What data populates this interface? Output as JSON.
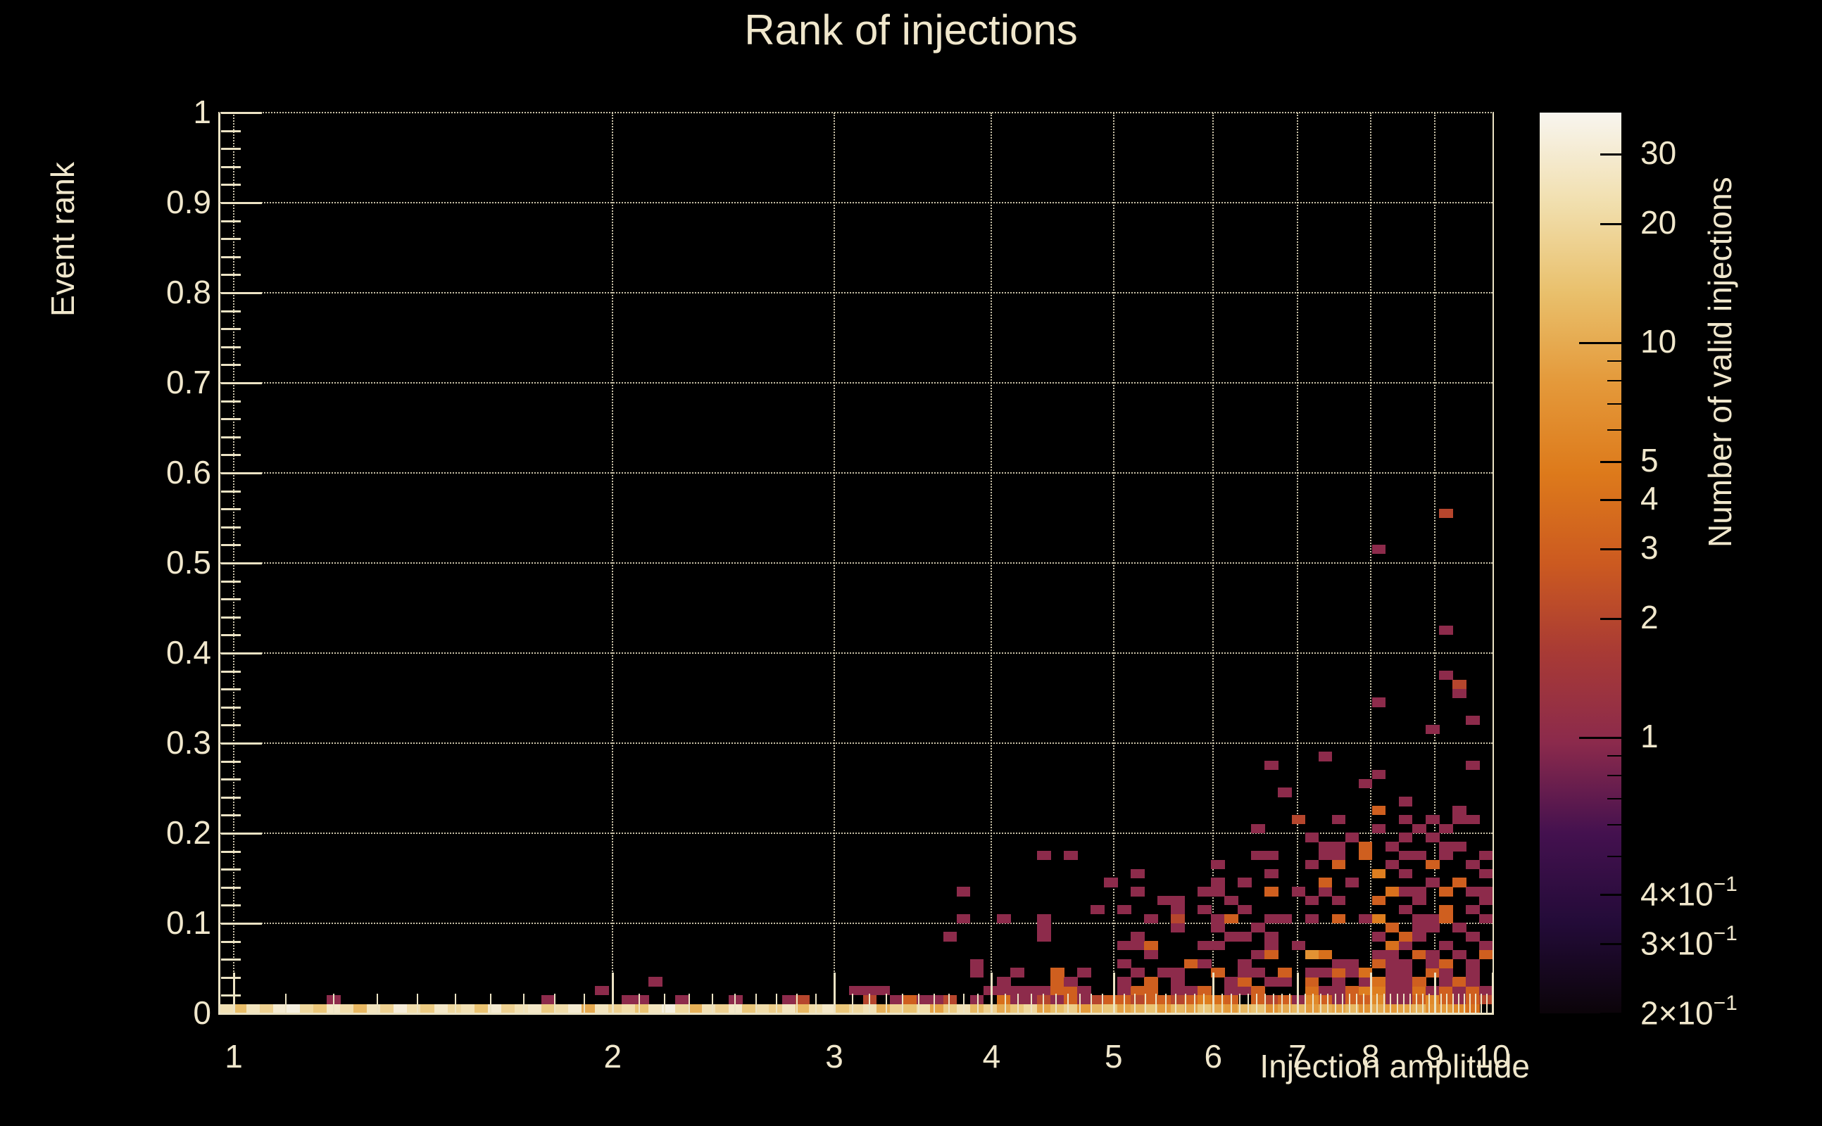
{
  "title": "Rank of injections",
  "colors": {
    "background": "#000000",
    "text": "#f0e7cc",
    "axis": "#ece3c4",
    "grid": "#ece3c4"
  },
  "chart_data": {
    "type": "heatmap",
    "title": "Rank of injections",
    "xlabel": "Injection amplitude",
    "ylabel": "Event rank",
    "zlabel": "Number of valid injections",
    "x_scale": "log",
    "x_range": [
      1,
      10
    ],
    "y_range": [
      0,
      1
    ],
    "z_scale": "log",
    "z_range": [
      0.2,
      38.3
    ],
    "grid": true,
    "legend_position": "right-colorbar",
    "x_bins": 95,
    "y_bins": 100,
    "x_ticks": [
      {
        "v": 1,
        "label": "1"
      },
      {
        "v": 2,
        "label": "2"
      },
      {
        "v": 3,
        "label": "3"
      },
      {
        "v": 4,
        "label": "4"
      },
      {
        "v": 5,
        "label": "5"
      },
      {
        "v": 6,
        "label": "6"
      },
      {
        "v": 7,
        "label": "7"
      },
      {
        "v": 8,
        "label": "8"
      },
      {
        "v": 9,
        "label": "9"
      },
      {
        "v": 10,
        "label": "10"
      }
    ],
    "y_ticks": [
      {
        "v": 0.0,
        "label": "0"
      },
      {
        "v": 0.1,
        "label": "0.1"
      },
      {
        "v": 0.2,
        "label": "0.2"
      },
      {
        "v": 0.3,
        "label": "0.3"
      },
      {
        "v": 0.4,
        "label": "0.4"
      },
      {
        "v": 0.5,
        "label": "0.5"
      },
      {
        "v": 0.6,
        "label": "0.6"
      },
      {
        "v": 0.7,
        "label": "0.7"
      },
      {
        "v": 0.8,
        "label": "0.8"
      },
      {
        "v": 0.9,
        "label": "0.9"
      },
      {
        "v": 1.0,
        "label": "1"
      }
    ],
    "z_ticks": [
      {
        "v": 30,
        "label": "30",
        "len": "med"
      },
      {
        "v": 20,
        "label": "20",
        "len": "med"
      },
      {
        "v": 10,
        "label": "10",
        "len": "long"
      },
      {
        "v": 5,
        "label": "5",
        "len": "med"
      },
      {
        "v": 4,
        "label": "4",
        "len": "med"
      },
      {
        "v": 3,
        "label": "3",
        "len": "med"
      },
      {
        "v": 2,
        "label": "2",
        "len": "med"
      },
      {
        "v": 1,
        "label": "1",
        "len": "long"
      },
      {
        "v": 0.4,
        "label": "4×10",
        "exp": "−1",
        "len": "med"
      },
      {
        "v": 0.3,
        "label": "3×10",
        "exp": "−1",
        "len": "med"
      },
      {
        "v": 0.2,
        "label": "2×10",
        "exp": "−1",
        "len": "med"
      }
    ],
    "z_minor_ticks": [
      9,
      8,
      7,
      6,
      0.9,
      0.8,
      0.7,
      0.6,
      0.5
    ],
    "palette": [
      [
        0.0,
        "#0b0409"
      ],
      [
        0.1,
        "#230b38"
      ],
      [
        0.2,
        "#44114f"
      ],
      [
        0.3,
        "#8b2a4c"
      ],
      [
        0.4,
        "#a83a35"
      ],
      [
        0.5,
        "#cc5a20"
      ],
      [
        0.6,
        "#dd7a1b"
      ],
      [
        0.7,
        "#e4993a"
      ],
      [
        0.8,
        "#e9c06c"
      ],
      [
        0.9,
        "#f1dfae"
      ],
      [
        1.0,
        "#f8f5ef"
      ]
    ],
    "bottom_row": [
      24,
      13,
      26,
      18,
      30,
      34,
      20,
      15,
      28,
      22,
      12,
      26,
      18,
      32,
      22,
      16,
      28,
      20,
      24,
      14,
      30,
      18,
      24,
      28,
      16,
      22,
      30,
      10,
      26,
      18,
      22,
      14,
      26,
      34,
      20,
      11,
      24,
      18,
      28,
      15,
      22,
      17,
      26,
      12,
      22,
      28,
      15,
      20,
      24,
      11,
      18,
      14,
      22,
      9,
      16,
      24,
      12,
      18,
      10,
      15,
      20,
      9,
      13,
      17,
      8,
      12,
      15,
      9,
      11,
      14,
      8,
      12,
      9,
      15,
      10,
      8,
      12,
      14,
      7,
      10,
      12,
      8,
      11,
      9,
      12,
      7,
      10,
      8,
      9,
      11,
      7,
      8,
      6,
      4,
      0
    ],
    "cells": [
      [
        7,
        1,
        1
      ],
      [
        23,
        1,
        1
      ],
      [
        29,
        1,
        1
      ],
      [
        30,
        1,
        1
      ],
      [
        33,
        1,
        1
      ],
      [
        37,
        1,
        1
      ],
      [
        41,
        1,
        1
      ],
      [
        42,
        1,
        2
      ],
      [
        47,
        1,
        2
      ],
      [
        49,
        1,
        1
      ],
      [
        50,
        1,
        3
      ],
      [
        51,
        1,
        1
      ],
      [
        52,
        1,
        1
      ],
      [
        53,
        1,
        2
      ],
      [
        55,
        1,
        1
      ],
      [
        57,
        1,
        4
      ],
      [
        58,
        1,
        1
      ],
      [
        59,
        1,
        1
      ],
      [
        60,
        1,
        2
      ],
      [
        61,
        1,
        1
      ],
      [
        62,
        1,
        3
      ],
      [
        63,
        1,
        1
      ],
      [
        64,
        1,
        2
      ],
      [
        65,
        1,
        3
      ],
      [
        66,
        1,
        3
      ],
      [
        67,
        1,
        2
      ],
      [
        68,
        1,
        3
      ],
      [
        69,
        1,
        3
      ],
      [
        70,
        1,
        2
      ],
      [
        71,
        1,
        3
      ],
      [
        72,
        1,
        5
      ],
      [
        73,
        1,
        4
      ],
      [
        74,
        1,
        3
      ],
      [
        76,
        1,
        3
      ],
      [
        77,
        1,
        2
      ],
      [
        78,
        1,
        3
      ],
      [
        79,
        1,
        1
      ],
      [
        80,
        1,
        6
      ],
      [
        81,
        1,
        3
      ],
      [
        82,
        1,
        1
      ],
      [
        83,
        1,
        3
      ],
      [
        84,
        1,
        3
      ],
      [
        85,
        1,
        6
      ],
      [
        86,
        1,
        1
      ],
      [
        87,
        1,
        1
      ],
      [
        88,
        1,
        3
      ],
      [
        89,
        1,
        6
      ],
      [
        90,
        1,
        3
      ],
      [
        91,
        1,
        1
      ],
      [
        92,
        1,
        3
      ],
      [
        93,
        1,
        2
      ],
      [
        27,
        2,
        1
      ],
      [
        46,
        2,
        1
      ],
      [
        47,
        2,
        1
      ],
      [
        48,
        2,
        1
      ],
      [
        56,
        2,
        1
      ],
      [
        57,
        2,
        1
      ],
      [
        58,
        2,
        1
      ],
      [
        59,
        2,
        1
      ],
      [
        60,
        2,
        1
      ],
      [
        61,
        2,
        3
      ],
      [
        62,
        2,
        3
      ],
      [
        63,
        2,
        1
      ],
      [
        66,
        2,
        1
      ],
      [
        67,
        2,
        3
      ],
      [
        68,
        2,
        3
      ],
      [
        70,
        2,
        1
      ],
      [
        71,
        2,
        1
      ],
      [
        72,
        2,
        3
      ],
      [
        74,
        2,
        1
      ],
      [
        75,
        2,
        1
      ],
      [
        76,
        2,
        3
      ],
      [
        80,
        2,
        4
      ],
      [
        81,
        2,
        1
      ],
      [
        82,
        2,
        1
      ],
      [
        83,
        2,
        3
      ],
      [
        84,
        2,
        5
      ],
      [
        85,
        2,
        5
      ],
      [
        86,
        2,
        1
      ],
      [
        87,
        2,
        1
      ],
      [
        88,
        2,
        4
      ],
      [
        89,
        2,
        1
      ],
      [
        90,
        2,
        3
      ],
      [
        91,
        2,
        1
      ],
      [
        92,
        2,
        3
      ],
      [
        93,
        2,
        1
      ],
      [
        31,
        3,
        1
      ],
      [
        57,
        3,
        1
      ],
      [
        61,
        3,
        3
      ],
      [
        62,
        3,
        1
      ],
      [
        66,
        3,
        1
      ],
      [
        68,
        3,
        3
      ],
      [
        70,
        3,
        1
      ],
      [
        74,
        3,
        1
      ],
      [
        75,
        3,
        3
      ],
      [
        77,
        3,
        1
      ],
      [
        78,
        3,
        1
      ],
      [
        80,
        3,
        3
      ],
      [
        82,
        3,
        1
      ],
      [
        84,
        3,
        1
      ],
      [
        85,
        3,
        4
      ],
      [
        86,
        3,
        1
      ],
      [
        87,
        3,
        1
      ],
      [
        88,
        3,
        3
      ],
      [
        90,
        3,
        1
      ],
      [
        91,
        3,
        3
      ],
      [
        92,
        3,
        1
      ],
      [
        55,
        4,
        1
      ],
      [
        58,
        4,
        1
      ],
      [
        61,
        4,
        3
      ],
      [
        63,
        4,
        1
      ],
      [
        67,
        4,
        1
      ],
      [
        69,
        4,
        1
      ],
      [
        70,
        4,
        1
      ],
      [
        73,
        4,
        3
      ],
      [
        75,
        4,
        1
      ],
      [
        76,
        4,
        1
      ],
      [
        78,
        4,
        3
      ],
      [
        80,
        4,
        1
      ],
      [
        81,
        4,
        1
      ],
      [
        82,
        4,
        3
      ],
      [
        83,
        4,
        1
      ],
      [
        84,
        4,
        4
      ],
      [
        86,
        4,
        1
      ],
      [
        87,
        4,
        1
      ],
      [
        89,
        4,
        3
      ],
      [
        90,
        4,
        1
      ],
      [
        92,
        4,
        1
      ],
      [
        55,
        5,
        1
      ],
      [
        66,
        5,
        1
      ],
      [
        71,
        5,
        3
      ],
      [
        72,
        5,
        1
      ],
      [
        75,
        5,
        1
      ],
      [
        82,
        5,
        1
      ],
      [
        83,
        5,
        1
      ],
      [
        85,
        5,
        3
      ],
      [
        86,
        5,
        1
      ],
      [
        87,
        5,
        1
      ],
      [
        89,
        5,
        1
      ],
      [
        90,
        5,
        3
      ],
      [
        92,
        5,
        1
      ],
      [
        68,
        6,
        1
      ],
      [
        76,
        6,
        1
      ],
      [
        77,
        6,
        3
      ],
      [
        80,
        6,
        7
      ],
      [
        81,
        6,
        4
      ],
      [
        85,
        6,
        1
      ],
      [
        86,
        6,
        1
      ],
      [
        88,
        6,
        3
      ],
      [
        89,
        6,
        1
      ],
      [
        91,
        6,
        1
      ],
      [
        93,
        6,
        3
      ],
      [
        66,
        7,
        1
      ],
      [
        67,
        7,
        1
      ],
      [
        68,
        7,
        3
      ],
      [
        72,
        7,
        1
      ],
      [
        73,
        7,
        1
      ],
      [
        77,
        7,
        1
      ],
      [
        79,
        7,
        1
      ],
      [
        86,
        7,
        4
      ],
      [
        87,
        7,
        1
      ],
      [
        90,
        7,
        1
      ],
      [
        93,
        7,
        1
      ],
      [
        53,
        8,
        1
      ],
      [
        60,
        8,
        1
      ],
      [
        67,
        8,
        1
      ],
      [
        74,
        8,
        1
      ],
      [
        75,
        8,
        1
      ],
      [
        77,
        8,
        1
      ],
      [
        85,
        8,
        1
      ],
      [
        87,
        8,
        3
      ],
      [
        88,
        8,
        1
      ],
      [
        92,
        8,
        1
      ],
      [
        60,
        9,
        1
      ],
      [
        70,
        9,
        1
      ],
      [
        73,
        9,
        1
      ],
      [
        76,
        9,
        1
      ],
      [
        86,
        9,
        3
      ],
      [
        88,
        9,
        1
      ],
      [
        89,
        9,
        1
      ],
      [
        91,
        9,
        1
      ],
      [
        54,
        10,
        1
      ],
      [
        57,
        10,
        1
      ],
      [
        60,
        10,
        1
      ],
      [
        68,
        10,
        1
      ],
      [
        70,
        10,
        2
      ],
      [
        73,
        10,
        1
      ],
      [
        74,
        10,
        3
      ],
      [
        77,
        10,
        1
      ],
      [
        78,
        10,
        1
      ],
      [
        80,
        10,
        1
      ],
      [
        82,
        10,
        3
      ],
      [
        84,
        10,
        1
      ],
      [
        85,
        10,
        5
      ],
      [
        88,
        10,
        1
      ],
      [
        89,
        10,
        1
      ],
      [
        90,
        10,
        3
      ],
      [
        93,
        10,
        1
      ],
      [
        64,
        11,
        1
      ],
      [
        66,
        11,
        1
      ],
      [
        70,
        11,
        1
      ],
      [
        72,
        11,
        1
      ],
      [
        75,
        11,
        1
      ],
      [
        87,
        11,
        1
      ],
      [
        90,
        11,
        3
      ],
      [
        92,
        11,
        1
      ],
      [
        69,
        12,
        1
      ],
      [
        70,
        12,
        1
      ],
      [
        74,
        12,
        1
      ],
      [
        80,
        12,
        1
      ],
      [
        82,
        12,
        1
      ],
      [
        85,
        12,
        3
      ],
      [
        88,
        12,
        1
      ],
      [
        93,
        12,
        1
      ],
      [
        54,
        13,
        1
      ],
      [
        67,
        13,
        1
      ],
      [
        72,
        13,
        1
      ],
      [
        73,
        13,
        1
      ],
      [
        77,
        13,
        3
      ],
      [
        79,
        13,
        1
      ],
      [
        81,
        13,
        1
      ],
      [
        86,
        13,
        4
      ],
      [
        87,
        13,
        1
      ],
      [
        88,
        13,
        1
      ],
      [
        90,
        13,
        3
      ],
      [
        92,
        13,
        1
      ],
      [
        93,
        13,
        1
      ],
      [
        65,
        14,
        1
      ],
      [
        73,
        14,
        1
      ],
      [
        75,
        14,
        1
      ],
      [
        81,
        14,
        3
      ],
      [
        83,
        14,
        1
      ],
      [
        89,
        14,
        1
      ],
      [
        91,
        14,
        3
      ],
      [
        67,
        15,
        1
      ],
      [
        77,
        15,
        1
      ],
      [
        85,
        15,
        5
      ],
      [
        87,
        15,
        1
      ],
      [
        93,
        15,
        1
      ],
      [
        73,
        16,
        1
      ],
      [
        80,
        16,
        1
      ],
      [
        82,
        16,
        3
      ],
      [
        86,
        16,
        1
      ],
      [
        89,
        16,
        3
      ],
      [
        92,
        16,
        1
      ],
      [
        60,
        17,
        1
      ],
      [
        62,
        17,
        1
      ],
      [
        76,
        17,
        1
      ],
      [
        77,
        17,
        1
      ],
      [
        81,
        17,
        1
      ],
      [
        82,
        17,
        1
      ],
      [
        84,
        17,
        3
      ],
      [
        87,
        17,
        1
      ],
      [
        88,
        17,
        1
      ],
      [
        90,
        17,
        1
      ],
      [
        93,
        17,
        1
      ],
      [
        81,
        18,
        1
      ],
      [
        82,
        18,
        1
      ],
      [
        84,
        18,
        3
      ],
      [
        86,
        18,
        1
      ],
      [
        90,
        18,
        1
      ],
      [
        91,
        18,
        1
      ],
      [
        80,
        19,
        1
      ],
      [
        83,
        19,
        1
      ],
      [
        87,
        19,
        1
      ],
      [
        89,
        19,
        1
      ],
      [
        76,
        20,
        1
      ],
      [
        85,
        20,
        1
      ],
      [
        88,
        20,
        1
      ],
      [
        90,
        20,
        1
      ],
      [
        79,
        21,
        2
      ],
      [
        82,
        21,
        1
      ],
      [
        87,
        21,
        1
      ],
      [
        89,
        21,
        1
      ],
      [
        91,
        21,
        1
      ],
      [
        92,
        21,
        1
      ],
      [
        85,
        22,
        3
      ],
      [
        91,
        22,
        1
      ],
      [
        87,
        23,
        1
      ],
      [
        78,
        24,
        1
      ],
      [
        84,
        25,
        1
      ],
      [
        85,
        26,
        1
      ],
      [
        77,
        27,
        1
      ],
      [
        92,
        27,
        1
      ],
      [
        81,
        28,
        1
      ],
      [
        89,
        31,
        1
      ],
      [
        92,
        32,
        1
      ],
      [
        85,
        34,
        1
      ],
      [
        91,
        35,
        1
      ],
      [
        91,
        36,
        2
      ],
      [
        90,
        37,
        1
      ],
      [
        90,
        42,
        1
      ],
      [
        85,
        51,
        1
      ],
      [
        90,
        55,
        2
      ]
    ]
  }
}
